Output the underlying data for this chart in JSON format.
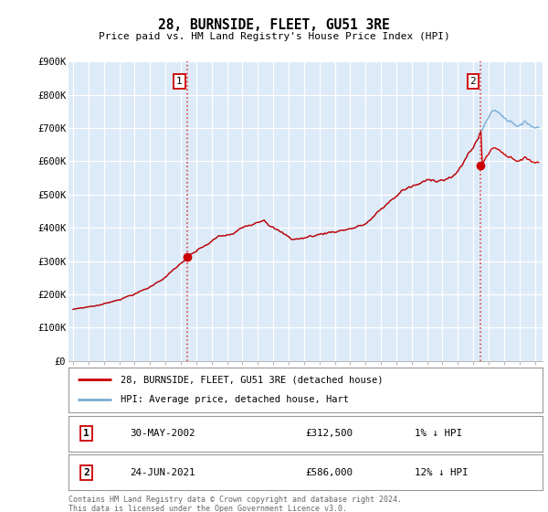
{
  "title": "28, BURNSIDE, FLEET, GU51 3RE",
  "subtitle": "Price paid vs. HM Land Registry's House Price Index (HPI)",
  "ylabel_ticks": [
    "£0",
    "£100K",
    "£200K",
    "£300K",
    "£400K",
    "£500K",
    "£600K",
    "£700K",
    "£800K",
    "£900K"
  ],
  "ylim": [
    0,
    900000
  ],
  "xlim_start": 1994.7,
  "xlim_end": 2025.5,
  "x_tick_years": [
    1995,
    1996,
    1997,
    1998,
    1999,
    2000,
    2001,
    2002,
    2003,
    2004,
    2005,
    2006,
    2007,
    2008,
    2009,
    2010,
    2011,
    2012,
    2013,
    2014,
    2015,
    2016,
    2017,
    2018,
    2019,
    2020,
    2021,
    2022,
    2023,
    2024,
    2025
  ],
  "hpi_color": "#7aadd4",
  "price_color": "#cc0000",
  "marker1_x": 2002.41,
  "marker1_sale_y": 312500,
  "marker2_x": 2021.48,
  "marker2_sale_y": 586000,
  "vline_color": "#dd4444",
  "legend_line1": "28, BURNSIDE, FLEET, GU51 3RE (detached house)",
  "legend_line2": "HPI: Average price, detached house, Hart",
  "footer": "Contains HM Land Registry data © Crown copyright and database right 2024.\nThis data is licensed under the Open Government Licence v3.0.",
  "background_color": "#ffffff",
  "plot_bg_color": "#ddeaf7",
  "grid_color": "#ffffff"
}
